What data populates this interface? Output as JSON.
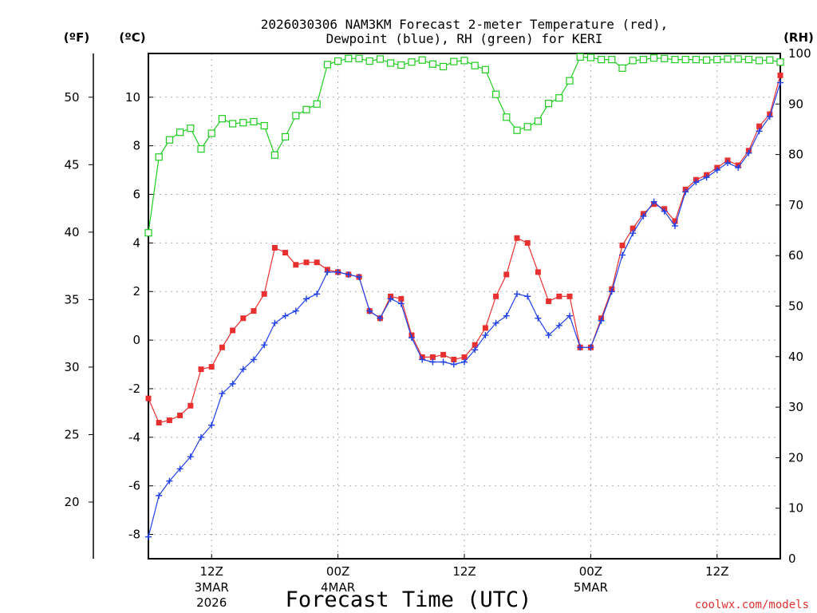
{
  "chart_data": {
    "type": "line",
    "title_line1": "2026030306 NAM3KM Forecast 2-meter Temperature (red),",
    "title_line2": "Dewpoint (blue), RH (green) for KERI",
    "xlabel": "Forecast Time (UTC)",
    "credit": "coolwx.com/models",
    "units": {
      "fahrenheit": "(ºF)",
      "celsius": "(ºC)",
      "rh": "(RH)"
    },
    "x_range_hours": [
      0,
      60
    ],
    "x_ticks": [
      {
        "hour": 6,
        "line1": "12Z",
        "line2": "3MAR",
        "line3": "2026"
      },
      {
        "hour": 18,
        "line1": "00Z",
        "line2": "4MAR",
        "line3": ""
      },
      {
        "hour": 30,
        "line1": "12Z",
        "line2": "",
        "line3": ""
      },
      {
        "hour": 42,
        "line1": "00Z",
        "line2": "5MAR",
        "line3": ""
      },
      {
        "hour": 54,
        "line1": "12Z",
        "line2": "",
        "line3": ""
      }
    ],
    "y_left_celsius": {
      "range": [
        -9.0,
        11.8
      ],
      "ticks": [
        "-8",
        "-6",
        "-4",
        "-2",
        "0",
        "2",
        "4",
        "6",
        "8",
        "10"
      ]
    },
    "y_left_fahrenheit": {
      "ticks": [
        "20",
        "25",
        "30",
        "35",
        "40",
        "45",
        "50"
      ]
    },
    "y_right_rh": {
      "range": [
        0,
        100
      ],
      "ticks": [
        "0",
        "10",
        "20",
        "30",
        "40",
        "50",
        "60",
        "70",
        "80",
        "90",
        "100"
      ]
    },
    "grid": true,
    "series": [
      {
        "name": "2-meter Temperature (°C)",
        "color": "#e83030",
        "marker": "filled-square",
        "values": [
          -2.4,
          -3.4,
          -3.3,
          -3.1,
          -2.7,
          -1.2,
          -1.1,
          -0.3,
          0.4,
          0.9,
          1.2,
          1.9,
          3.8,
          3.6,
          3.1,
          3.2,
          3.2,
          2.9,
          2.8,
          2.7,
          2.6,
          1.2,
          0.9,
          1.8,
          1.7,
          0.2,
          -0.7,
          -0.7,
          -0.6,
          -0.8,
          -0.7,
          -0.2,
          0.5,
          1.8,
          2.7,
          4.2,
          4.0,
          2.8,
          1.6,
          1.8,
          1.8,
          -0.3,
          -0.3,
          0.9,
          2.1,
          3.9,
          4.6,
          5.2,
          5.6,
          5.4,
          4.9,
          6.2,
          6.6,
          6.8,
          7.1,
          7.4,
          7.2,
          7.8,
          8.8,
          9.3,
          10.9
        ]
      },
      {
        "name": "Dewpoint (°C)",
        "color": "#2040e8",
        "marker": "plus",
        "values": [
          -8.1,
          -6.4,
          -5.8,
          -5.3,
          -4.8,
          -4.0,
          -3.5,
          -2.2,
          -1.8,
          -1.2,
          -0.8,
          -0.2,
          0.7,
          1.0,
          1.2,
          1.7,
          1.9,
          2.8,
          2.8,
          2.7,
          2.6,
          1.2,
          0.9,
          1.7,
          1.5,
          0.1,
          -0.8,
          -0.9,
          -0.9,
          -1.0,
          -0.9,
          -0.4,
          0.2,
          0.7,
          1.0,
          1.9,
          1.8,
          0.9,
          0.2,
          0.6,
          1.0,
          -0.3,
          -0.3,
          0.8,
          2.0,
          3.5,
          4.4,
          5.1,
          5.7,
          5.3,
          4.7,
          6.1,
          6.5,
          6.7,
          7.0,
          7.3,
          7.1,
          7.7,
          8.6,
          9.2,
          10.6
        ]
      },
      {
        "name": "Relative Humidity (%)",
        "color": "#20cc20",
        "marker": "open-square",
        "values": [
          64.5,
          79.5,
          82.9,
          84.4,
          85.2,
          81.1,
          84.2,
          87.1,
          86.1,
          86.3,
          86.5,
          85.7,
          79.9,
          83.5,
          87.7,
          88.9,
          90.0,
          97.8,
          98.5,
          99.0,
          99.0,
          98.5,
          98.9,
          98.1,
          97.7,
          98.3,
          98.7,
          97.9,
          97.4,
          98.4,
          98.6,
          97.6,
          96.8,
          91.9,
          87.4,
          84.8,
          85.5,
          86.6,
          90.1,
          91.2,
          94.6,
          99.3,
          99.2,
          98.8,
          98.8,
          97.1,
          98.6,
          98.8,
          99.1,
          99.0,
          98.8,
          98.8,
          98.8,
          98.7,
          98.8,
          98.9,
          98.9,
          98.8,
          98.6,
          98.7,
          98.3
        ]
      }
    ]
  }
}
